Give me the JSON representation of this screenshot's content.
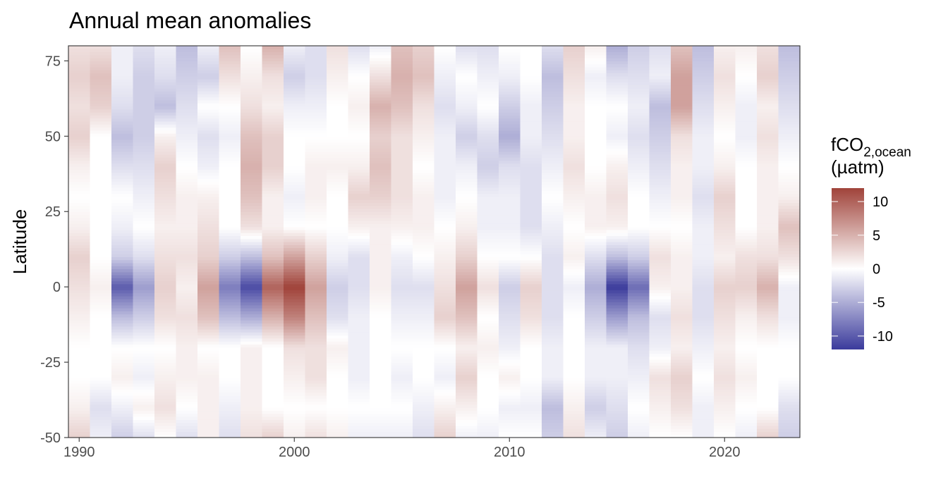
{
  "chart_data": {
    "type": "heatmap",
    "title": "Annual mean anomalies",
    "xlabel": "",
    "ylabel": "Latitude",
    "xlim": [
      1989.5,
      2023.5
    ],
    "ylim": [
      -50,
      80
    ],
    "x_ticks": [
      1990,
      2000,
      2010,
      2020
    ],
    "y_ticks": [
      -50,
      -25,
      0,
      25,
      50,
      75
    ],
    "x_tick_labels": [
      "1990",
      "2000",
      "2010",
      "2020"
    ],
    "y_tick_labels": [
      "-50",
      "-25",
      "0",
      "25",
      "50",
      "75"
    ],
    "lat_step": 1,
    "grid": false,
    "legend": {
      "position": "right",
      "title_main": "fCO",
      "title_sub": "2,ocean",
      "title_unit": "(µatm)",
      "limits": [
        -12,
        12
      ],
      "ticks": [
        10,
        5,
        0,
        -5,
        -10
      ],
      "tick_labels": [
        "10",
        "5",
        "0",
        "-5",
        "-10"
      ],
      "colors": {
        "low": "#3b3b9c",
        "mid": "#ffffff",
        "high": "#a0433a"
      }
    },
    "years": [
      1990,
      1991,
      1992,
      1993,
      1994,
      1995,
      1996,
      1997,
      1998,
      1999,
      2000,
      2001,
      2002,
      2003,
      2004,
      2005,
      2006,
      2007,
      2008,
      2009,
      2010,
      2011,
      2012,
      2013,
      2014,
      2015,
      2016,
      2017,
      2018,
      2019,
      2020,
      2021,
      2022,
      2023
    ],
    "lat_knots": [
      -50,
      -40,
      -30,
      -20,
      -10,
      0,
      10,
      20,
      30,
      40,
      50,
      60,
      70,
      80
    ],
    "anomaly_profiles": [
      [
        3,
        1,
        0,
        0,
        1,
        2,
        3,
        1,
        0,
        1,
        3,
        2,
        3,
        2
      ],
      [
        -1,
        -2,
        0,
        0,
        0,
        1,
        0,
        0,
        0,
        0,
        0,
        3,
        4,
        2
      ],
      [
        -3,
        -1,
        1,
        0,
        -4,
        -10,
        -3,
        -1,
        0,
        -2,
        -4,
        -2,
        -1,
        -1
      ],
      [
        -2,
        1,
        -1,
        0,
        -3,
        -6,
        -2,
        0,
        -1,
        -2,
        -3,
        -3,
        -3,
        -2
      ],
      [
        0,
        2,
        1,
        0,
        2,
        3,
        2,
        1,
        2,
        3,
        1,
        -4,
        -2,
        -1
      ],
      [
        -2,
        0,
        1,
        1,
        2,
        1,
        2,
        1,
        1,
        0,
        -1,
        -2,
        -3,
        -4
      ],
      [
        1,
        1,
        1,
        0,
        4,
        6,
        3,
        2,
        1,
        -1,
        -2,
        0,
        -3,
        -1
      ],
      [
        -2,
        -1,
        0,
        0,
        -4,
        -8,
        -3,
        0,
        0,
        0,
        -1,
        0,
        2,
        4
      ],
      [
        2,
        1,
        1,
        1,
        -5,
        -11,
        -4,
        2,
        4,
        5,
        4,
        2,
        1,
        0
      ],
      [
        3,
        0,
        0,
        0,
        5,
        10,
        4,
        1,
        1,
        3,
        3,
        1,
        2,
        5
      ],
      [
        1,
        0,
        1,
        2,
        8,
        12,
        6,
        0,
        -1,
        0,
        0,
        -1,
        -3,
        -1
      ],
      [
        2,
        0,
        2,
        2,
        4,
        6,
        3,
        0,
        1,
        1,
        0,
        -1,
        -2,
        -2
      ],
      [
        1,
        0,
        0,
        1,
        -2,
        -3,
        -1,
        0,
        0,
        1,
        0,
        0,
        1,
        2
      ],
      [
        -1,
        0,
        -1,
        -1,
        -1,
        -2,
        -2,
        1,
        3,
        1,
        0,
        1,
        0,
        -2
      ],
      [
        -1,
        0,
        0,
        0,
        0,
        1,
        1,
        1,
        3,
        4,
        3,
        5,
        2,
        -1
      ],
      [
        -1,
        0,
        -1,
        0,
        -1,
        -2,
        -1,
        1,
        2,
        2,
        2,
        4,
        5,
        4
      ],
      [
        -2,
        -1,
        0,
        0,
        -1,
        -2,
        0,
        1,
        1,
        0,
        1,
        2,
        4,
        3
      ],
      [
        3,
        1,
        -1,
        0,
        3,
        2,
        1,
        0,
        -1,
        -1,
        -1,
        -2,
        -1,
        0
      ],
      [
        -1,
        1,
        3,
        1,
        4,
        6,
        3,
        1,
        0,
        -1,
        -3,
        -1,
        0,
        -2
      ],
      [
        -1,
        0,
        0,
        1,
        0,
        2,
        0,
        -1,
        -1,
        -3,
        -2,
        0,
        -1,
        -2
      ],
      [
        0,
        -1,
        1,
        -1,
        -2,
        -3,
        0,
        -1,
        -1,
        -2,
        -5,
        -3,
        -1,
        0
      ],
      [
        0,
        -1,
        0,
        0,
        2,
        3,
        0,
        -2,
        -2,
        -2,
        -1,
        -1,
        0,
        0
      ],
      [
        -3,
        -4,
        -1,
        -1,
        -2,
        -2,
        -2,
        -1,
        0,
        -1,
        -2,
        -3,
        -4,
        -2
      ],
      [
        2,
        1,
        0,
        0,
        0,
        -1,
        1,
        0,
        1,
        2,
        1,
        1,
        2,
        3
      ],
      [
        -1,
        -3,
        -1,
        -1,
        -3,
        -5,
        -2,
        1,
        1,
        0,
        0,
        0,
        -1,
        1
      ],
      [
        -3,
        -2,
        -1,
        -1,
        -6,
        -12,
        -4,
        1,
        2,
        1,
        -1,
        0,
        -2,
        -5
      ],
      [
        -1,
        0,
        -1,
        -2,
        -4,
        -9,
        -3,
        0,
        0,
        -1,
        -2,
        -1,
        -2,
        -3
      ],
      [
        0,
        1,
        2,
        -1,
        -2,
        1,
        2,
        0,
        -1,
        -2,
        -3,
        -4,
        -1,
        -2
      ],
      [
        0,
        2,
        3,
        1,
        2,
        1,
        1,
        0,
        1,
        1,
        2,
        6,
        6,
        4
      ],
      [
        -1,
        -1,
        0,
        -1,
        -2,
        -2,
        -1,
        -1,
        -2,
        -1,
        -1,
        -2,
        -3,
        -4
      ],
      [
        0,
        1,
        2,
        1,
        2,
        3,
        1,
        2,
        3,
        1,
        0,
        1,
        2,
        1
      ],
      [
        -1,
        0,
        1,
        0,
        1,
        3,
        2,
        0,
        0,
        0,
        -1,
        -1,
        0,
        1
      ],
      [
        3,
        0,
        0,
        0,
        2,
        5,
        2,
        1,
        1,
        1,
        2,
        1,
        3,
        2
      ],
      [
        -3,
        -2,
        0,
        0,
        -1,
        -1,
        2,
        4,
        1,
        0,
        -1,
        -2,
        -3,
        -4
      ]
    ]
  }
}
